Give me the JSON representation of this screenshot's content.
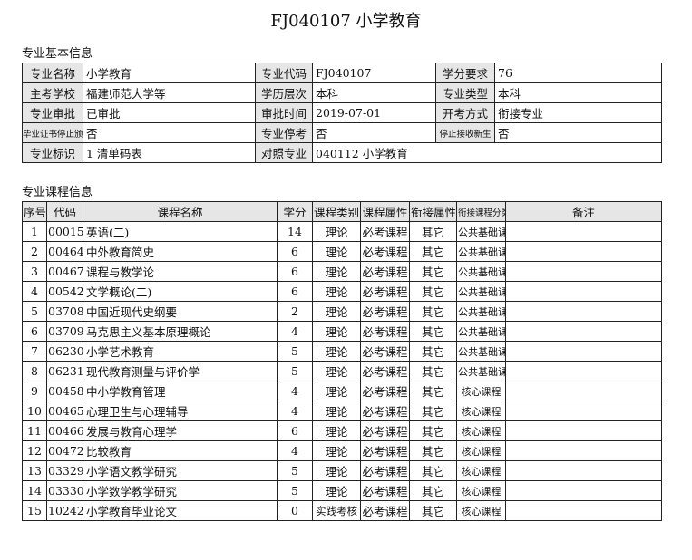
{
  "title": "FJ040107  小学教育",
  "info_section": "专业基本信息",
  "info": [
    [
      {
        "label": "专业名称",
        "value": "小学教育"
      },
      {
        "label": "专业代码",
        "value": "FJ040107"
      },
      {
        "label": "学分要求",
        "value": "76"
      }
    ],
    [
      {
        "label": "主考学校",
        "value": "福建师范大学等"
      },
      {
        "label": "学历层次",
        "value": "本科"
      },
      {
        "label": "专业类型",
        "value": "本科"
      }
    ],
    [
      {
        "label": "专业审批",
        "value": "已审批"
      },
      {
        "label": "审批时间",
        "value": "2019-07-01"
      },
      {
        "label": "开考方式",
        "value": "衔接专业"
      }
    ],
    [
      {
        "label": "毕业证书停止颁发",
        "value": "否"
      },
      {
        "label": "专业停考",
        "value": "否"
      },
      {
        "label": "停止接收新生",
        "value": "否"
      }
    ],
    [
      {
        "label": "专业标识",
        "value": "1 清单码表"
      },
      {
        "label": "对照专业",
        "value": "040112 小学教育"
      }
    ]
  ],
  "course_section": "专业课程信息",
  "headers": [
    "序号",
    "代码",
    "课程名称",
    "学分",
    "课程类别",
    "课程属性",
    "衔接属性",
    "衔接课程分类",
    "备注"
  ],
  "rows": [
    [
      "1",
      "00015",
      "英语(二)",
      "14",
      "理论",
      "必考课程",
      "其它",
      "公共基础课",
      ""
    ],
    [
      "2",
      "00464",
      "中外教育简史",
      "6",
      "理论",
      "必考课程",
      "其它",
      "公共基础课",
      ""
    ],
    [
      "3",
      "00467",
      "课程与教学论",
      "6",
      "理论",
      "必考课程",
      "其它",
      "公共基础课",
      ""
    ],
    [
      "4",
      "00542",
      "文学概论(二)",
      "6",
      "理论",
      "必考课程",
      "其它",
      "公共基础课",
      ""
    ],
    [
      "5",
      "03708",
      "中国近现代史纲要",
      "2",
      "理论",
      "必考课程",
      "其它",
      "公共基础课",
      ""
    ],
    [
      "6",
      "03709",
      "马克思主义基本原理概论",
      "4",
      "理论",
      "必考课程",
      "其它",
      "公共基础课",
      ""
    ],
    [
      "7",
      "06230",
      "小学艺术教育",
      "5",
      "理论",
      "必考课程",
      "其它",
      "公共基础课",
      ""
    ],
    [
      "8",
      "06231",
      "现代教育测量与评价学",
      "5",
      "理论",
      "必考课程",
      "其它",
      "公共基础课",
      ""
    ],
    [
      "9",
      "00458",
      "中小学教育管理",
      "4",
      "理论",
      "必考课程",
      "其它",
      "核心课程",
      ""
    ],
    [
      "10",
      "00465",
      "心理卫生与心理辅导",
      "4",
      "理论",
      "必考课程",
      "其它",
      "核心课程",
      ""
    ],
    [
      "11",
      "00466",
      "发展与教育心理学",
      "6",
      "理论",
      "必考课程",
      "其它",
      "核心课程",
      ""
    ],
    [
      "12",
      "00472",
      "比较教育",
      "4",
      "理论",
      "必考课程",
      "其它",
      "核心课程",
      ""
    ],
    [
      "13",
      "03329",
      "小学语文教学研究",
      "5",
      "理论",
      "必考课程",
      "其它",
      "核心课程",
      ""
    ],
    [
      "14",
      "03330",
      "小学数学教学研究",
      "5",
      "理论",
      "必考课程",
      "其它",
      "核心课程",
      ""
    ],
    [
      "15",
      "10242",
      "小学教育毕业论文",
      "0",
      "实践考核",
      "必考课程",
      "其它",
      "核心课程",
      ""
    ]
  ]
}
